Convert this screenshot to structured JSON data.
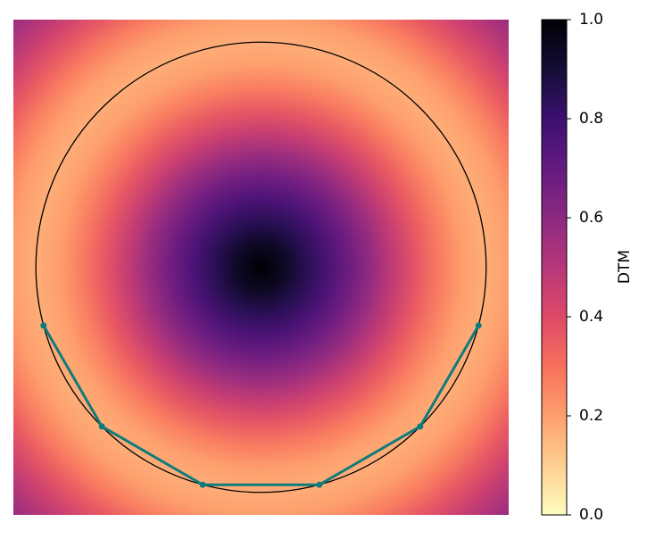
{
  "chart_data": {
    "type": "heatmap",
    "colormap": "magma_r",
    "xlim": [
      -1.1,
      1.1
    ],
    "ylim": [
      -1.1,
      1.1
    ],
    "profile": {
      "r": [
        0,
        0.1,
        0.2,
        0.3,
        0.4,
        0.5,
        0.6,
        0.7,
        0.8,
        0.9,
        1.0,
        1.1,
        1.2,
        1.3,
        1.4,
        1.5,
        1.6
      ],
      "values": [
        1.0,
        0.94,
        0.85,
        0.76,
        0.67,
        0.57,
        0.46,
        0.36,
        0.27,
        0.2,
        0.17,
        0.2,
        0.27,
        0.36,
        0.45,
        0.53,
        0.6
      ]
    },
    "circle": {
      "center": [
        0,
        0
      ],
      "radius": 1,
      "color": "#000000"
    },
    "series": [
      {
        "color": "#0e7c7b",
        "x": [
          -0.966,
          -0.707,
          -0.259,
          0.259,
          0.707,
          0.966
        ],
        "y": [
          -0.259,
          -0.707,
          -0.966,
          -0.966,
          -0.707,
          -0.259
        ]
      }
    ],
    "colorbar": {
      "label": "DTM",
      "lim": [
        0,
        1
      ],
      "ticks": [
        {
          "value": 0,
          "label": "0.0"
        },
        {
          "value": 0.2,
          "label": "0.2"
        },
        {
          "value": 0.4,
          "label": "0.4"
        },
        {
          "value": 0.6,
          "label": "0.6"
        },
        {
          "value": 0.8,
          "label": "0.8"
        },
        {
          "value": 1,
          "label": "1.0"
        }
      ]
    }
  }
}
